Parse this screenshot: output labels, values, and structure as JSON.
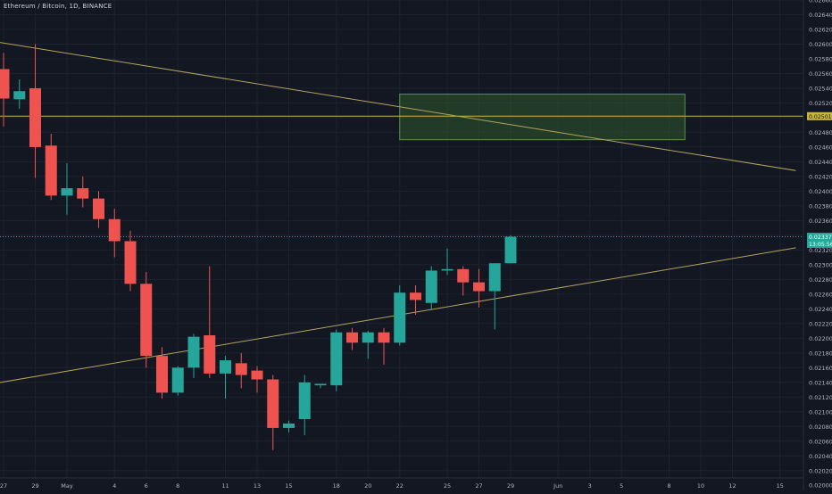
{
  "header": {
    "symbol_title": "Ethereum / Bitcoin, 1D, BINANCE"
  },
  "colors": {
    "background": "#131722",
    "grid": "#1e2230",
    "up": "#26a69a",
    "down": "#ef5350",
    "trendline": "#b6a35c",
    "hline": "#c9b53a",
    "rect_fill": "#2e5a2e",
    "rect_stroke": "#5d8f4f",
    "price_line": "#26a69a",
    "axis_text": "#b2b5be"
  },
  "chart_data": {
    "type": "candlestick",
    "ylim": [
      0.0201,
      0.0266
    ],
    "y_ticks": [
      "0.026600",
      "0.026400",
      "0.026200",
      "0.026000",
      "0.025800",
      "0.025600",
      "0.025400",
      "0.025200",
      "0.025000",
      "0.024800",
      "0.024600",
      "0.024400",
      "0.024200",
      "0.024000",
      "0.023800",
      "0.023600",
      "0.023400",
      "0.023200",
      "0.023000",
      "0.022800",
      "0.022600",
      "0.022400",
      "0.022200",
      "0.022000",
      "0.021800",
      "0.021600",
      "0.021400",
      "0.021200",
      "0.021000",
      "0.020800",
      "0.020600",
      "0.020400",
      "0.020200",
      "0.020000"
    ],
    "x_labels": [
      {
        "label": "27",
        "day": -4
      },
      {
        "label": "29",
        "day": -2
      },
      {
        "label": "May",
        "day": 0
      },
      {
        "label": "4",
        "day": 3
      },
      {
        "label": "6",
        "day": 5
      },
      {
        "label": "8",
        "day": 7
      },
      {
        "label": "11",
        "day": 10
      },
      {
        "label": "13",
        "day": 12
      },
      {
        "label": "15",
        "day": 14
      },
      {
        "label": "18",
        "day": 17
      },
      {
        "label": "20",
        "day": 19
      },
      {
        "label": "22",
        "day": 21
      },
      {
        "label": "25",
        "day": 24
      },
      {
        "label": "27",
        "day": 26
      },
      {
        "label": "29",
        "day": 28
      },
      {
        "label": "Jun",
        "day": 31
      },
      {
        "label": "3",
        "day": 33
      },
      {
        "label": "5",
        "day": 35
      },
      {
        "label": "8",
        "day": 38
      },
      {
        "label": "10",
        "day": 40
      },
      {
        "label": "12",
        "day": 42
      },
      {
        "label": "15",
        "day": 45
      }
    ],
    "candles": [
      {
        "day": -4,
        "o": 0.02566,
        "h": 0.02588,
        "l": 0.02488,
        "c": 0.02526
      },
      {
        "day": -3,
        "o": 0.02525,
        "h": 0.02552,
        "l": 0.02512,
        "c": 0.02536
      },
      {
        "day": -2,
        "o": 0.0254,
        "h": 0.026,
        "l": 0.02418,
        "c": 0.0246
      },
      {
        "day": -1,
        "o": 0.02462,
        "h": 0.02478,
        "l": 0.02388,
        "c": 0.02394
      },
      {
        "day": 0,
        "o": 0.02394,
        "h": 0.02438,
        "l": 0.02368,
        "c": 0.02404
      },
      {
        "day": 1,
        "o": 0.02404,
        "h": 0.0242,
        "l": 0.02378,
        "c": 0.0239
      },
      {
        "day": 2,
        "o": 0.0239,
        "h": 0.024,
        "l": 0.0235,
        "c": 0.02362
      },
      {
        "day": 3,
        "o": 0.02362,
        "h": 0.02376,
        "l": 0.0231,
        "c": 0.02332
      },
      {
        "day": 4,
        "o": 0.02332,
        "h": 0.02346,
        "l": 0.02264,
        "c": 0.02274
      },
      {
        "day": 5,
        "o": 0.02274,
        "h": 0.0229,
        "l": 0.0216,
        "c": 0.02176
      },
      {
        "day": 6,
        "o": 0.02176,
        "h": 0.02188,
        "l": 0.02118,
        "c": 0.02126
      },
      {
        "day": 7,
        "o": 0.02126,
        "h": 0.02162,
        "l": 0.02122,
        "c": 0.0216
      },
      {
        "day": 8,
        "o": 0.0216,
        "h": 0.02206,
        "l": 0.02146,
        "c": 0.02202
      },
      {
        "day": 9,
        "o": 0.02204,
        "h": 0.02298,
        "l": 0.02146,
        "c": 0.02152
      },
      {
        "day": 10,
        "o": 0.02152,
        "h": 0.02176,
        "l": 0.02118,
        "c": 0.0217
      },
      {
        "day": 11,
        "o": 0.02166,
        "h": 0.0218,
        "l": 0.02132,
        "c": 0.0215
      },
      {
        "day": 12,
        "o": 0.02156,
        "h": 0.02162,
        "l": 0.02126,
        "c": 0.02144
      },
      {
        "day": 13,
        "o": 0.02144,
        "h": 0.0215,
        "l": 0.02048,
        "c": 0.02078
      },
      {
        "day": 14,
        "o": 0.02078,
        "h": 0.02088,
        "l": 0.02072,
        "c": 0.02084
      },
      {
        "day": 15,
        "o": 0.0209,
        "h": 0.0215,
        "l": 0.02068,
        "c": 0.0214
      },
      {
        "day": 16,
        "o": 0.02136,
        "h": 0.02138,
        "l": 0.02132,
        "c": 0.02138
      },
      {
        "day": 17,
        "o": 0.02136,
        "h": 0.02212,
        "l": 0.02128,
        "c": 0.02208
      },
      {
        "day": 18,
        "o": 0.02208,
        "h": 0.02214,
        "l": 0.02184,
        "c": 0.02194
      },
      {
        "day": 19,
        "o": 0.02194,
        "h": 0.0221,
        "l": 0.02172,
        "c": 0.02208
      },
      {
        "day": 20,
        "o": 0.02208,
        "h": 0.02214,
        "l": 0.02164,
        "c": 0.02194
      },
      {
        "day": 21,
        "o": 0.02194,
        "h": 0.02272,
        "l": 0.0219,
        "c": 0.02262
      },
      {
        "day": 22,
        "o": 0.02262,
        "h": 0.02272,
        "l": 0.02232,
        "c": 0.02252
      },
      {
        "day": 23,
        "o": 0.02248,
        "h": 0.02298,
        "l": 0.02238,
        "c": 0.02292
      },
      {
        "day": 24,
        "o": 0.02292,
        "h": 0.02322,
        "l": 0.02286,
        "c": 0.02294
      },
      {
        "day": 25,
        "o": 0.02294,
        "h": 0.02298,
        "l": 0.02258,
        "c": 0.02276
      },
      {
        "day": 26,
        "o": 0.02276,
        "h": 0.02294,
        "l": 0.02242,
        "c": 0.02264
      },
      {
        "day": 27,
        "o": 0.02264,
        "h": 0.02302,
        "l": 0.02212,
        "c": 0.02302
      },
      {
        "day": 28,
        "o": 0.02302,
        "h": 0.0234,
        "l": 0.02302,
        "c": 0.02338
      }
    ],
    "horizontal_line": {
      "price": 0.02502,
      "label": "0.025016"
    },
    "price_line": {
      "price": 0.02338,
      "label": "0.023376",
      "countdown": "13:05:56"
    },
    "zone": {
      "day_start": 21,
      "day_end": 39,
      "price_high": 0.02532,
      "price_low": 0.0247
    },
    "trendlines": [
      {
        "p1": {
          "day": -5,
          "price": 0.02605
        },
        "p2": {
          "day": 46,
          "price": 0.02428
        }
      },
      {
        "p1": {
          "day": -5,
          "price": 0.02137
        },
        "p2": {
          "day": 46,
          "price": 0.02323
        }
      }
    ]
  }
}
